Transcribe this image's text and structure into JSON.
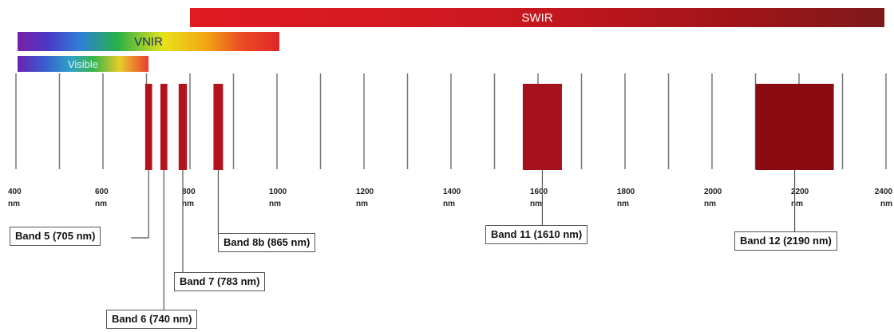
{
  "regions": {
    "swir": "SWIR",
    "vnir": "VNIR",
    "visible": "Visible"
  },
  "axis": {
    "min_nm": 400,
    "max_nm": 2400,
    "tick_values": [
      400,
      500,
      600,
      700,
      800,
      900,
      1000,
      1100,
      1200,
      1300,
      1400,
      1500,
      1600,
      1700,
      1800,
      1900,
      2000,
      2100,
      2200,
      2300,
      2400
    ],
    "labels": [
      "400",
      "600",
      "800",
      "1000",
      "1200",
      "1400",
      "1600",
      "1800",
      "2000",
      "2200",
      "2400"
    ],
    "label_values": [
      400,
      600,
      800,
      1000,
      1200,
      1400,
      1600,
      1800,
      2000,
      2200,
      2400
    ],
    "unit": "nm"
  },
  "bands": [
    {
      "name": "Band 5 (705 nm)",
      "start_nm": 697,
      "end_nm": 713,
      "color": "#b3141c"
    },
    {
      "name": "Band 6 (740 nm)",
      "start_nm": 732,
      "end_nm": 748,
      "color": "#b3141c"
    },
    {
      "name": "Band 7 (783 nm)",
      "start_nm": 774,
      "end_nm": 793,
      "color": "#b3141c"
    },
    {
      "name": "Band 8b (865 nm)",
      "start_nm": 854,
      "end_nm": 876,
      "color": "#b3141c"
    },
    {
      "name": "Band 11 (1610 nm)",
      "start_nm": 1565,
      "end_nm": 1655,
      "color": "#a5121e"
    },
    {
      "name": "Band 12 (2190 nm)",
      "start_nm": 2100,
      "end_nm": 2280,
      "color": "#8a0c12"
    }
  ],
  "colors": {
    "tick_line": "#777777",
    "axis_text": "#222222",
    "leader_line": "#555555"
  }
}
